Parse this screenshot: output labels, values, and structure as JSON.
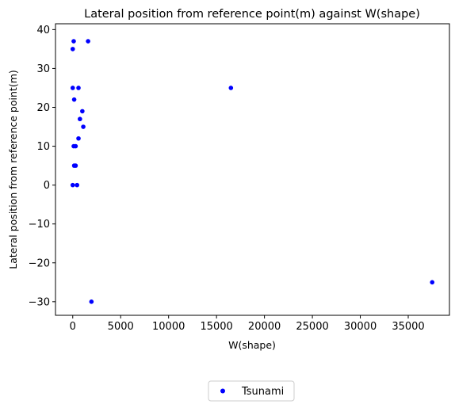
{
  "chart_data": {
    "type": "scatter",
    "title": "Lateral position from reference point(m) against W(shape)",
    "xlabel": "W(shape)",
    "ylabel": "Lateral position from reference point(m)",
    "xlim": [
      -1800,
      39300
    ],
    "ylim": [
      -33.5,
      41.5
    ],
    "xticks": [
      0,
      5000,
      10000,
      15000,
      20000,
      25000,
      30000,
      35000
    ],
    "yticks": [
      -30,
      -20,
      -10,
      0,
      10,
      20,
      30,
      40
    ],
    "xtick_labels": [
      "0",
      "5000",
      "10000",
      "15000",
      "20000",
      "25000",
      "30000",
      "35000"
    ],
    "ytick_labels": [
      "−30",
      "−20",
      "−10",
      "0",
      "10",
      "20",
      "30",
      "40"
    ],
    "grid": false,
    "legend_position": "bottom-center-outside",
    "series": [
      {
        "name": "Tsunami",
        "color": "#0000ff",
        "points": [
          {
            "x": 0,
            "y": 35
          },
          {
            "x": 100,
            "y": 37
          },
          {
            "x": 1600,
            "y": 37
          },
          {
            "x": 0,
            "y": 25
          },
          {
            "x": 600,
            "y": 25
          },
          {
            "x": 16500,
            "y": 25
          },
          {
            "x": 150,
            "y": 22
          },
          {
            "x": 1000,
            "y": 19
          },
          {
            "x": 750,
            "y": 17
          },
          {
            "x": 1100,
            "y": 15
          },
          {
            "x": 600,
            "y": 12
          },
          {
            "x": 100,
            "y": 10
          },
          {
            "x": 300,
            "y": 10
          },
          {
            "x": 150,
            "y": 5
          },
          {
            "x": 300,
            "y": 5
          },
          {
            "x": 0,
            "y": 0
          },
          {
            "x": 450,
            "y": 0
          },
          {
            "x": 37500,
            "y": -25
          },
          {
            "x": 1950,
            "y": -30
          }
        ]
      }
    ]
  }
}
